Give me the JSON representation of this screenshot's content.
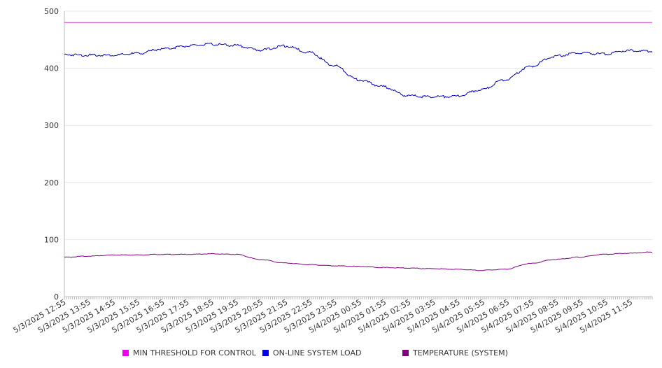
{
  "chart_data": {
    "type": "line",
    "ylim": [
      0,
      500
    ],
    "yticks": [
      0,
      100,
      200,
      300,
      400,
      500
    ],
    "x_tick_labels": [
      "5/3/2025 12:55",
      "5/3/2025 13:55",
      "5/3/2025 14:55",
      "5/3/2025 15:55",
      "5/3/2025 16:55",
      "5/3/2025 17:55",
      "5/3/2025 18:55",
      "5/3/2025 19:55",
      "5/3/2025 20:55",
      "5/3/2025 21:55",
      "5/3/2025 22:55",
      "5/3/2025 23:55",
      "5/4/2025 00:55",
      "5/4/2025 01:55",
      "5/4/2025 02:55",
      "5/4/2025 03:55",
      "5/4/2025 04:55",
      "5/4/2025 05:55",
      "5/4/2025 06:55",
      "5/4/2025 07:55",
      "5/4/2025 08:55",
      "5/4/2025 09:55",
      "5/4/2025 10:55",
      "5/4/2025 11:55"
    ],
    "series": [
      {
        "name": "MIN THRESHOLD FOR CONTROL",
        "color": "#cc33cc",
        "legend_color": "#ee00ee",
        "values": [
          480,
          480,
          480,
          480,
          480,
          480,
          480,
          480,
          480,
          480,
          480,
          480,
          480,
          480,
          480,
          480,
          480,
          480,
          480,
          480,
          480,
          480,
          480,
          480,
          480
        ]
      },
      {
        "name": "ON-LINE SYSTEM LOAD",
        "color": "#0000bb",
        "legend_color": "#0000ee",
        "values": [
          424,
          423,
          423,
          426,
          434,
          439,
          442,
          440,
          432,
          439,
          428,
          405,
          380,
          368,
          352,
          350,
          351,
          362,
          380,
          403,
          421,
          427,
          425,
          431,
          430
        ]
      },
      {
        "name": "TEMPERATURE (SYSTEM)",
        "color": "#800080",
        "legend_color": "#800080",
        "values": [
          69,
          71,
          73,
          73,
          74,
          74,
          75,
          74,
          65,
          59,
          56,
          54,
          53,
          51,
          50,
          49,
          48,
          46,
          48,
          58,
          65,
          69,
          74,
          76,
          78
        ]
      }
    ]
  }
}
